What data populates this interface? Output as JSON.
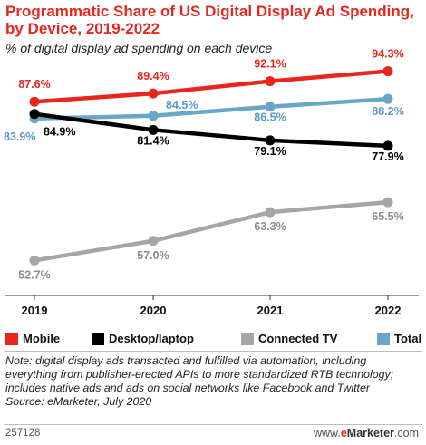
{
  "title": "Programmatic Share of US Digital Display Ad Spending, by Device, 2019-2022",
  "subtitle": "% of digital display ad spending on each device",
  "chart_data": {
    "type": "line",
    "title": "Programmatic Share of US Digital Display Ad Spending, by Device, 2019-2022",
    "subtitle": "% of digital display ad spending on each device",
    "x": [
      "2019",
      "2020",
      "2021",
      "2022"
    ],
    "ylim": [
      45,
      98
    ],
    "grid": false,
    "legend_position": "bottom",
    "series": [
      {
        "name": "Mobile",
        "color": "#e8261c",
        "values": [
          87.6,
          89.4,
          92.1,
          94.3
        ],
        "labels": [
          "87.6%",
          "89.4%",
          "92.1%",
          "94.3%"
        ]
      },
      {
        "name": "Desktop/laptop",
        "color": "#000000",
        "values": [
          84.9,
          81.4,
          79.1,
          77.9
        ],
        "labels": [
          "84.9%",
          "81.4%",
          "79.1%",
          "77.9%"
        ]
      },
      {
        "name": "Connected TV",
        "color": "#a6a6a6",
        "values": [
          52.7,
          57.0,
          63.3,
          65.5
        ],
        "labels": [
          "52.7%",
          "57.0%",
          "63.3%",
          "65.5%"
        ]
      },
      {
        "name": "Total",
        "color": "#6aa6c8",
        "values": [
          83.9,
          84.5,
          86.5,
          88.2
        ],
        "labels": [
          "83.9%",
          "84.5%",
          "86.5%",
          "88.2%"
        ]
      }
    ]
  },
  "note": "Note: digital display ads transacted and fulfilled via automation, including everything from publisher-erected APIs to more standardized RTB technology; includes native ads and ads on social networks like Facebook and Twitter",
  "source": "Source: eMarketer, July 2020",
  "footer": {
    "chart_id": "257128",
    "brand_prefix": "www.",
    "brand_e": "e",
    "brand_name": "Marketer",
    "brand_suffix": ".com"
  }
}
